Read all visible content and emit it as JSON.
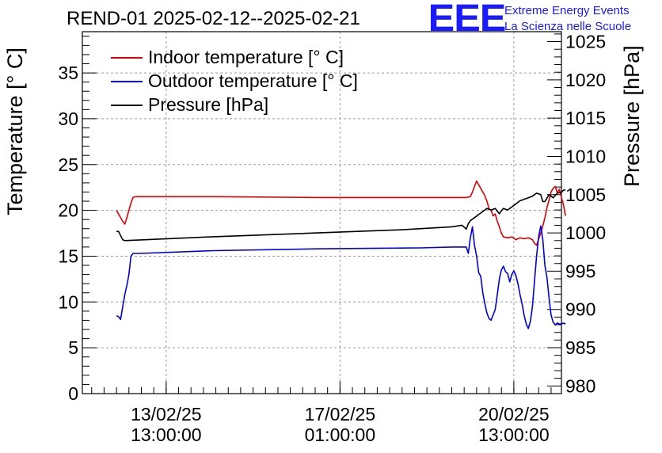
{
  "title": "REND-01 2025-02-12--2025-02-21",
  "logo": {
    "mark": "EEE",
    "line1": "Extreme Energy Events",
    "line2": "La Scienza nelle Scuole",
    "color": "#1a1aff"
  },
  "legend": [
    {
      "label": "Indoor temperature [° C]",
      "color": "#e00000"
    },
    {
      "label": "Outdoor temperature [° C]",
      "color": "#0000e0"
    },
    {
      "label": "Pressure [hPa]",
      "color": "#000000"
    }
  ],
  "chart_data": {
    "type": "line",
    "title": "REND-01 2025-02-12--2025-02-21",
    "xlabel": "",
    "x_unit": "hours since 2025-02-12 00:00",
    "xlim": [
      -3.5,
      228
    ],
    "x_ticks": [
      {
        "x": 37,
        "label_date": "13/02/25",
        "label_time": "13:00:00"
      },
      {
        "x": 121,
        "label_date": "17/02/25",
        "label_time": "01:00:00"
      },
      {
        "x": 205,
        "label_date": "20/02/25",
        "label_time": "13:00:00"
      }
    ],
    "y_left": {
      "label": "Temperature [° C]",
      "ylim": [
        0,
        39.5
      ],
      "ticks": [
        0,
        5,
        10,
        15,
        20,
        25,
        30,
        35
      ]
    },
    "y_right": {
      "label": "Pressure [hPa]",
      "ylim": [
        979,
        1026.3
      ],
      "ticks": [
        980,
        985,
        990,
        995,
        1000,
        1005,
        1010,
        1015,
        1020,
        1025
      ]
    },
    "grid": true,
    "series": [
      {
        "name": "Indoor temperature [° C]",
        "axis": "left",
        "color": "#e00000",
        "x": [
          13,
          14,
          15,
          16,
          17,
          18,
          19,
          20,
          21,
          22,
          25,
          60,
          110,
          160,
          175,
          182,
          184,
          185,
          186,
          187,
          188,
          190,
          191,
          192,
          193,
          194,
          195,
          196,
          197,
          198,
          199,
          200,
          202,
          204,
          206,
          208,
          210,
          212,
          214,
          215,
          216,
          217,
          218,
          219,
          220,
          221,
          222,
          223,
          224,
          225,
          226,
          227,
          228,
          229,
          230
        ],
        "y": [
          20.0,
          19.6,
          19.2,
          18.8,
          18.5,
          19.2,
          20.0,
          20.8,
          21.4,
          21.5,
          21.5,
          21.5,
          21.4,
          21.4,
          21.4,
          21.4,
          21.5,
          22.0,
          22.6,
          23.2,
          22.8,
          22.0,
          21.6,
          21.0,
          20.2,
          20.0,
          19.4,
          19.6,
          18.8,
          18.2,
          17.5,
          17.1,
          17.0,
          17.1,
          16.8,
          17.0,
          16.9,
          17.0,
          16.8,
          16.4,
          16.2,
          16.9,
          17.5,
          18.3,
          19.2,
          20.3,
          21.1,
          22.0,
          22.4,
          22.6,
          21.9,
          22.3,
          21.4,
          20.6,
          19.4
        ]
      },
      {
        "name": "Outdoor temperature [° C]",
        "axis": "left",
        "color": "#0000e0",
        "x": [
          13,
          14,
          15,
          16,
          17,
          18,
          19,
          20,
          21,
          22,
          24,
          60,
          110,
          160,
          175,
          182,
          183,
          184,
          185,
          186,
          187,
          188,
          189,
          190,
          191,
          192,
          193,
          194,
          195,
          196,
          197,
          198,
          199,
          200,
          201,
          202,
          203,
          204,
          205,
          206,
          207,
          208,
          209,
          210,
          211,
          212,
          213,
          214,
          215,
          216,
          217,
          218,
          219,
          220,
          221,
          222,
          223,
          224,
          225,
          226,
          227,
          228,
          229,
          230
        ],
        "y": [
          8.5,
          8.4,
          8.1,
          9.5,
          10.8,
          11.8,
          13.0,
          15.0,
          15.3,
          15.3,
          15.3,
          15.6,
          15.8,
          15.9,
          16.0,
          16.0,
          15.3,
          17.0,
          18.2,
          16.2,
          15.0,
          13.2,
          12.8,
          11.0,
          9.8,
          8.8,
          8.2,
          8.0,
          8.6,
          9.2,
          10.8,
          12.5,
          13.5,
          13.9,
          13.3,
          13.1,
          12.2,
          13.0,
          13.4,
          12.9,
          12.0,
          10.8,
          9.8,
          8.5,
          7.6,
          7.1,
          7.9,
          9.5,
          12.3,
          15.0,
          17.2,
          18.3,
          16.8,
          14.0,
          12.7,
          10.5,
          8.6,
          7.8,
          7.5,
          7.7,
          7.6,
          7.6,
          7.7,
          7.6
        ]
      },
      {
        "name": "Pressure [hPa]",
        "axis": "right",
        "color": "#000000",
        "x": [
          13,
          14,
          16,
          17,
          60,
          110,
          150,
          175,
          180,
          182,
          183,
          184,
          186,
          188,
          190,
          192,
          194,
          196,
          198,
          199,
          200,
          202,
          204,
          206,
          208,
          210,
          212,
          214,
          216,
          218,
          219,
          220,
          222,
          224,
          226,
          228,
          229,
          230
        ],
        "y": [
          1000.2,
          1000.2,
          999.1,
          999.0,
          999.5,
          1000.0,
          1000.4,
          1000.8,
          1001.0,
          1000.5,
          1001.2,
          1001.6,
          1002.0,
          1002.4,
          1002.8,
          1003.2,
          1003.0,
          1003.2,
          1002.5,
          1002.9,
          1003.2,
          1003.0,
          1003.4,
          1003.8,
          1004.2,
          1004.4,
          1004.6,
          1004.8,
          1005.2,
          1005.0,
          1004.1,
          1004.1,
          1005.0,
          1004.6,
          1005.2,
          1005.3,
          1005.6,
          1005.6
        ]
      }
    ]
  }
}
